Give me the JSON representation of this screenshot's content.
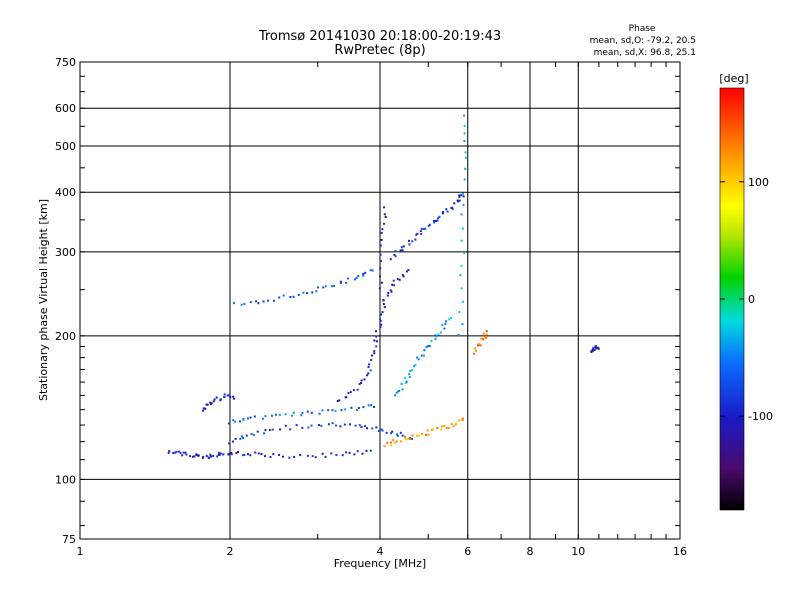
{
  "chart_data": {
    "type": "scatter",
    "title": "Tromsø 20141030 20:18:00-20:19:43",
    "subtitle": "RwPretec (8p)",
    "xlabel": "Frequency [MHz]",
    "ylabel": "Stationary phase Virtual Height [km]",
    "x_scale": "log",
    "y_scale": "log",
    "xlim": [
      1,
      16
    ],
    "ylim": [
      75,
      750
    ],
    "x_ticks": [
      1,
      2,
      4,
      6,
      8,
      10,
      16
    ],
    "x_tick_labels": [
      "1",
      "2",
      "4",
      "6",
      "8",
      "10",
      "16"
    ],
    "y_ticks": [
      75,
      100,
      200,
      300,
      400,
      500,
      600,
      750
    ],
    "y_tick_labels": [
      "75",
      "100",
      "200",
      "300",
      "400",
      "500",
      "600",
      "750"
    ],
    "grid": true,
    "phase_note": {
      "title": "Phase",
      "line_o": "mean, sd,O: -79.2, 20.5",
      "line_x": "mean, sd,X:  96.8, 25.1"
    },
    "colorbar": {
      "label": "[deg]",
      "range": [
        -180,
        180
      ],
      "ticks": [
        100,
        0,
        -100
      ],
      "tick_labels": [
        "100",
        "0",
        "-100"
      ],
      "colormap": "rainbow"
    },
    "traces": [
      {
        "x": [
          1.5,
          1.6,
          1.7,
          1.8,
          1.9,
          2.0,
          2.2,
          2.5,
          3.0,
          3.5,
          3.9
        ],
        "y": [
          115,
          113,
          112,
          112,
          113,
          114,
          113,
          112,
          112,
          113,
          116
        ],
        "phase": -100
      },
      {
        "x": [
          2.0,
          2.2,
          2.5,
          3.0,
          3.5,
          3.9,
          4.3,
          4.7
        ],
        "y": [
          120,
          124,
          128,
          130,
          130,
          128,
          125,
          122
        ],
        "phase": -80
      },
      {
        "x": [
          2.0,
          2.2,
          2.6,
          3.0,
          3.5,
          4.0
        ],
        "y": [
          132,
          134,
          137,
          138,
          140,
          143
        ],
        "phase": -60
      },
      {
        "x": [
          4.1,
          4.4,
          4.8,
          5.2,
          5.6,
          5.9
        ],
        "y": [
          118,
          121,
          124,
          127,
          130,
          134
        ],
        "phase": 120
      },
      {
        "x": [
          3.3,
          3.6,
          3.8,
          3.9,
          4.0,
          4.1,
          4.3,
          4.6
        ],
        "y": [
          145,
          155,
          170,
          190,
          215,
          240,
          260,
          275
        ],
        "phase": -100
      },
      {
        "x": [
          2.05,
          2.4,
          2.8,
          3.2,
          3.6,
          3.9
        ],
        "y": [
          232,
          238,
          245,
          255,
          265,
          275
        ],
        "phase": -70
      },
      {
        "x": [
          4.2,
          4.5,
          4.8,
          5.1,
          5.4,
          5.7,
          5.9
        ],
        "y": [
          290,
          310,
          330,
          345,
          360,
          380,
          400
        ],
        "phase": -90
      },
      {
        "x": [
          4.3,
          4.5,
          4.7,
          5.0,
          5.3,
          5.6
        ],
        "y": [
          150,
          160,
          175,
          190,
          205,
          220
        ],
        "phase": -40
      },
      {
        "x": [
          6.2,
          6.4,
          6.6
        ],
        "y": [
          185,
          195,
          205
        ],
        "phase": 140
      },
      {
        "x": [
          10.6,
          10.8,
          11.0
        ],
        "y": [
          185,
          188,
          190
        ],
        "phase": -100
      },
      {
        "x": [
          1.75,
          1.85,
          1.95,
          2.05
        ],
        "y": [
          140,
          145,
          150,
          148
        ],
        "phase": -100
      },
      {
        "x": [
          5.8,
          5.85,
          5.9,
          5.95
        ],
        "y": [
          200,
          300,
          450,
          600
        ],
        "phase": -20
      },
      {
        "x": [
          4.0,
          4.05,
          4.1
        ],
        "y": [
          250,
          320,
          380
        ],
        "phase": -110
      }
    ]
  }
}
